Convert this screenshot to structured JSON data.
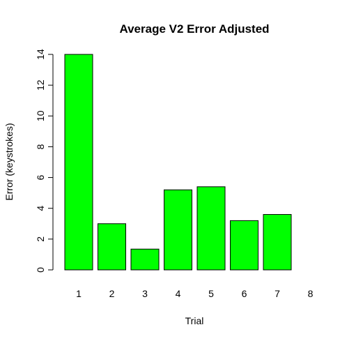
{
  "chart_data": {
    "type": "bar",
    "title": "Average V2 Error Adjusted",
    "xlabel": "Trial",
    "ylabel": "Error (keystrokes)",
    "categories": [
      "1",
      "2",
      "3",
      "4",
      "5",
      "6",
      "7",
      "8"
    ],
    "values": [
      14.0,
      3.0,
      1.35,
      5.2,
      5.4,
      3.2,
      3.6,
      0.0
    ],
    "ylim": [
      0,
      14
    ],
    "yticks": [
      "0",
      "2",
      "4",
      "6",
      "8",
      "10",
      "12",
      "14"
    ],
    "bar_color": "#00ff00",
    "grid": false
  }
}
